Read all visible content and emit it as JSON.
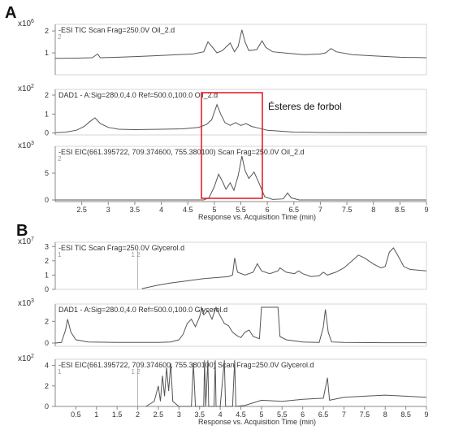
{
  "panel_a_label": "A",
  "panel_b_label": "B",
  "annotation": "Ésteres de forbol",
  "colors": {
    "trace": "#555555",
    "axis": "#888888",
    "box": "#e0141b",
    "title": "#333333"
  },
  "chart_data": [
    {
      "type": "line",
      "panel": "A",
      "title": "-ESI TIC Scan Frag=250.0V Oil_2.d",
      "channel": "2",
      "scale_label": "x10",
      "scale_exp": "6",
      "ylim": [
        0,
        2.3
      ],
      "yticks": [
        "1",
        "2"
      ],
      "ytick_values": [
        1,
        2
      ],
      "xlim": [
        2.0,
        9.0
      ],
      "series": [
        {
          "values": [
            [
              2.0,
              0.75
            ],
            [
              2.4,
              0.76
            ],
            [
              2.7,
              0.78
            ],
            [
              2.8,
              0.95
            ],
            [
              2.85,
              0.78
            ],
            [
              3.2,
              0.8
            ],
            [
              3.6,
              0.84
            ],
            [
              4.0,
              0.88
            ],
            [
              4.3,
              0.92
            ],
            [
              4.6,
              0.95
            ],
            [
              4.8,
              1.05
            ],
            [
              4.88,
              1.5
            ],
            [
              4.95,
              1.3
            ],
            [
              5.05,
              1.0
            ],
            [
              5.15,
              1.1
            ],
            [
              5.3,
              1.45
            ],
            [
              5.38,
              1.05
            ],
            [
              5.45,
              1.3
            ],
            [
              5.52,
              2.05
            ],
            [
              5.58,
              1.5
            ],
            [
              5.65,
              1.1
            ],
            [
              5.8,
              1.15
            ],
            [
              5.9,
              1.55
            ],
            [
              5.97,
              1.25
            ],
            [
              6.1,
              1.05
            ],
            [
              6.4,
              0.98
            ],
            [
              6.7,
              0.92
            ],
            [
              7.0,
              0.95
            ],
            [
              7.1,
              1.0
            ],
            [
              7.2,
              1.2
            ],
            [
              7.3,
              1.05
            ],
            [
              7.6,
              0.92
            ],
            [
              8.0,
              0.86
            ],
            [
              8.5,
              0.8
            ],
            [
              9.0,
              0.78
            ]
          ]
        }
      ]
    },
    {
      "type": "line",
      "panel": "A",
      "title": "DAD1 - A:Sig=280.0,4.0  Ref=500.0,100.0 Oil_2.d",
      "scale_label": "x10",
      "scale_exp": "2",
      "ylim": [
        -0.1,
        2.3
      ],
      "yticks": [
        "0",
        "1",
        "2"
      ],
      "ytick_values": [
        0,
        1,
        2
      ],
      "xlim": [
        2.0,
        9.0
      ],
      "series": [
        {
          "values": [
            [
              2.0,
              0.02
            ],
            [
              2.2,
              0.05
            ],
            [
              2.4,
              0.15
            ],
            [
              2.55,
              0.35
            ],
            [
              2.65,
              0.6
            ],
            [
              2.75,
              0.8
            ],
            [
              2.85,
              0.5
            ],
            [
              3.0,
              0.3
            ],
            [
              3.2,
              0.2
            ],
            [
              3.5,
              0.18
            ],
            [
              4.0,
              0.2
            ],
            [
              4.4,
              0.22
            ],
            [
              4.7,
              0.3
            ],
            [
              4.85,
              0.45
            ],
            [
              4.95,
              0.7
            ],
            [
              5.05,
              1.5
            ],
            [
              5.12,
              1.0
            ],
            [
              5.2,
              0.55
            ],
            [
              5.3,
              0.4
            ],
            [
              5.4,
              0.55
            ],
            [
              5.5,
              0.4
            ],
            [
              5.6,
              0.5
            ],
            [
              5.7,
              0.35
            ],
            [
              5.85,
              0.25
            ],
            [
              6.0,
              0.15
            ],
            [
              6.5,
              0.05
            ],
            [
              7.0,
              0.03
            ],
            [
              8.0,
              0.02
            ],
            [
              9.0,
              0.02
            ]
          ]
        }
      ]
    },
    {
      "type": "line",
      "panel": "A",
      "title": "-ESI EIC(661.395722, 709.374600, 755.380100)  Scan  Frag=250.0V  Oil_2.d",
      "channel": "2",
      "scale_label": "x10",
      "scale_exp": "3",
      "ylim": [
        -0.3,
        10.0
      ],
      "yticks": [
        "0",
        "5"
      ],
      "ytick_values": [
        0,
        5
      ],
      "xlim": [
        2.0,
        9.0
      ],
      "xlabel": "Response vs. Acquisition Time (min)",
      "xticks": [
        "2.5",
        "3",
        "3.5",
        "4",
        "4.5",
        "5",
        "5.5",
        "6",
        "6.5",
        "7",
        "7.5",
        "8",
        "8.5",
        "9"
      ],
      "xtick_values": [
        2.5,
        3,
        3.5,
        4,
        4.5,
        5,
        5.5,
        6,
        6.5,
        7,
        7.5,
        8,
        8.5,
        9
      ],
      "series": [
        {
          "values": [
            [
              2.0,
              0.0
            ],
            [
              4.8,
              0.0
            ],
            [
              4.9,
              0.4
            ],
            [
              5.0,
              2.5
            ],
            [
              5.08,
              4.8
            ],
            [
              5.15,
              3.5
            ],
            [
              5.22,
              2.0
            ],
            [
              5.3,
              3.2
            ],
            [
              5.37,
              1.8
            ],
            [
              5.45,
              4.5
            ],
            [
              5.52,
              8.2
            ],
            [
              5.58,
              5.5
            ],
            [
              5.65,
              4.0
            ],
            [
              5.75,
              5.2
            ],
            [
              5.85,
              3.0
            ],
            [
              5.95,
              0.6
            ],
            [
              6.1,
              0.1
            ],
            [
              6.3,
              0.2
            ],
            [
              6.38,
              1.3
            ],
            [
              6.45,
              0.4
            ],
            [
              6.6,
              0.0
            ],
            [
              9.0,
              0.0
            ]
          ]
        }
      ]
    },
    {
      "type": "line",
      "panel": "B",
      "title": "-ESI TIC Scan Frag=250.0V Glycerol.d",
      "channel": "1",
      "channel2": "1 2",
      "scale_label": "x10",
      "scale_exp": "7",
      "ylim": [
        0,
        3.3
      ],
      "yticks": [
        "0",
        "1",
        "2",
        "3"
      ],
      "ytick_values": [
        0,
        1,
        2,
        3
      ],
      "xlim": [
        0.0,
        9.0
      ],
      "series": [
        {
          "values": [
            [
              2.1,
              0.05
            ],
            [
              2.5,
              0.3
            ],
            [
              2.8,
              0.45
            ],
            [
              3.2,
              0.6
            ],
            [
              3.6,
              0.75
            ],
            [
              4.0,
              0.85
            ],
            [
              4.2,
              0.9
            ],
            [
              4.3,
              1.0
            ],
            [
              4.35,
              2.2
            ],
            [
              4.42,
              1.2
            ],
            [
              4.6,
              1.0
            ],
            [
              4.8,
              1.2
            ],
            [
              4.9,
              1.8
            ],
            [
              5.0,
              1.3
            ],
            [
              5.2,
              1.1
            ],
            [
              5.4,
              1.3
            ],
            [
              5.45,
              1.5
            ],
            [
              5.6,
              1.2
            ],
            [
              5.8,
              1.1
            ],
            [
              5.9,
              1.3
            ],
            [
              6.0,
              1.1
            ],
            [
              6.2,
              0.9
            ],
            [
              6.4,
              0.95
            ],
            [
              6.5,
              1.2
            ],
            [
              6.6,
              1.0
            ],
            [
              6.8,
              1.2
            ],
            [
              7.0,
              1.5
            ],
            [
              7.2,
              2.0
            ],
            [
              7.35,
              2.4
            ],
            [
              7.5,
              2.2
            ],
            [
              7.7,
              1.8
            ],
            [
              7.9,
              1.5
            ],
            [
              8.0,
              1.6
            ],
            [
              8.1,
              2.6
            ],
            [
              8.2,
              2.9
            ],
            [
              8.3,
              2.4
            ],
            [
              8.45,
              1.6
            ],
            [
              8.6,
              1.4
            ],
            [
              9.0,
              1.3
            ]
          ]
        }
      ]
    },
    {
      "type": "line",
      "panel": "B",
      "title": "DAD1 - A:Sig=280.0,4.0  Ref=500.0,100.0 Glycerol.d",
      "scale_label": "x10",
      "scale_exp": "3",
      "ylim": [
        -0.3,
        3.6
      ],
      "yticks": [
        "0",
        "2"
      ],
      "ytick_values": [
        0,
        2
      ],
      "xlim": [
        0.0,
        9.0
      ],
      "series": [
        {
          "values": [
            [
              0.0,
              0.0
            ],
            [
              0.15,
              0.05
            ],
            [
              0.25,
              1.2
            ],
            [
              0.3,
              2.2
            ],
            [
              0.38,
              1.0
            ],
            [
              0.5,
              0.3
            ],
            [
              0.8,
              0.1
            ],
            [
              1.5,
              0.05
            ],
            [
              2.0,
              0.05
            ],
            [
              2.5,
              0.05
            ],
            [
              2.8,
              0.1
            ],
            [
              3.0,
              0.3
            ],
            [
              3.1,
              0.8
            ],
            [
              3.2,
              1.8
            ],
            [
              3.3,
              2.2
            ],
            [
              3.4,
              1.5
            ],
            [
              3.5,
              2.4
            ],
            [
              3.55,
              3.2
            ],
            [
              3.6,
              2.6
            ],
            [
              3.7,
              3.0
            ],
            [
              3.8,
              2.2
            ],
            [
              3.9,
              3.3
            ],
            [
              4.0,
              2.5
            ],
            [
              4.1,
              1.8
            ],
            [
              4.2,
              1.6
            ],
            [
              4.3,
              1.0
            ],
            [
              4.4,
              0.7
            ],
            [
              4.5,
              0.5
            ],
            [
              4.6,
              1.0
            ],
            [
              4.7,
              1.2
            ],
            [
              4.8,
              0.6
            ],
            [
              4.95,
              0.4
            ],
            [
              5.0,
              3.3
            ],
            [
              5.4,
              3.3
            ],
            [
              5.45,
              0.6
            ],
            [
              5.6,
              0.3
            ],
            [
              6.0,
              0.1
            ],
            [
              6.4,
              0.05
            ],
            [
              6.5,
              1.5
            ],
            [
              6.55,
              3.1
            ],
            [
              6.62,
              1.0
            ],
            [
              6.7,
              0.1
            ],
            [
              7.0,
              0.05
            ],
            [
              8.0,
              0.03
            ],
            [
              9.0,
              0.03
            ]
          ]
        }
      ]
    },
    {
      "type": "line",
      "panel": "B",
      "title": "-ESI EIC(661.395722, 709.374600, 755.380100) Scan  Frag=250.0V Glycerol.d",
      "channel": "1",
      "channel2": "1 2",
      "scale_label": "x10",
      "scale_exp": "2",
      "ylim": [
        0,
        4.6
      ],
      "yticks": [
        "0",
        "2",
        "4"
      ],
      "ytick_values": [
        0,
        2,
        4
      ],
      "xlim": [
        0.0,
        9.0
      ],
      "xlabel": "Response vs. Acquisition Time (min)",
      "xticks": [
        "0.5",
        "1",
        "1.5",
        "2",
        "2.5",
        "3",
        "3.5",
        "4",
        "4.5",
        "5",
        "5.5",
        "6",
        "6.5",
        "7",
        "7.5",
        "8",
        "8.5",
        "9"
      ],
      "xtick_values": [
        0.5,
        1,
        1.5,
        2,
        2.5,
        3,
        3.5,
        4,
        4.5,
        5,
        5.5,
        6,
        6.5,
        7,
        7.5,
        8,
        8.5,
        9
      ],
      "series": [
        {
          "values": [
            [
              2.2,
              0.0
            ],
            [
              2.4,
              0.5
            ],
            [
              2.5,
              2.0
            ],
            [
              2.55,
              0.5
            ],
            [
              2.6,
              3.0
            ],
            [
              2.65,
              1.0
            ],
            [
              2.7,
              3.8
            ],
            [
              2.75,
              1.5
            ],
            [
              2.8,
              4.2
            ],
            [
              2.85,
              0.5
            ],
            [
              3.0,
              0.0
            ],
            [
              3.3,
              0.0
            ],
            [
              3.35,
              4.2
            ],
            [
              3.4,
              0.0
            ],
            [
              3.6,
              0.0
            ],
            [
              3.62,
              4.5
            ],
            [
              3.65,
              0.0
            ],
            [
              3.7,
              4.5
            ],
            [
              3.72,
              0.0
            ],
            [
              3.85,
              0.0
            ],
            [
              3.88,
              4.5
            ],
            [
              3.9,
              0.0
            ],
            [
              4.0,
              0.0
            ],
            [
              4.1,
              4.5
            ],
            [
              4.13,
              0.0
            ],
            [
              4.3,
              0.0
            ],
            [
              4.35,
              4.5
            ],
            [
              4.38,
              0.0
            ],
            [
              4.6,
              0.1
            ],
            [
              5.0,
              0.6
            ],
            [
              5.5,
              0.5
            ],
            [
              6.0,
              0.7
            ],
            [
              6.5,
              0.8
            ],
            [
              6.6,
              2.8
            ],
            [
              6.65,
              0.6
            ],
            [
              7.0,
              0.9
            ],
            [
              7.5,
              1.0
            ],
            [
              8.0,
              1.1
            ],
            [
              8.5,
              1.0
            ],
            [
              9.0,
              0.9
            ]
          ]
        }
      ]
    }
  ]
}
